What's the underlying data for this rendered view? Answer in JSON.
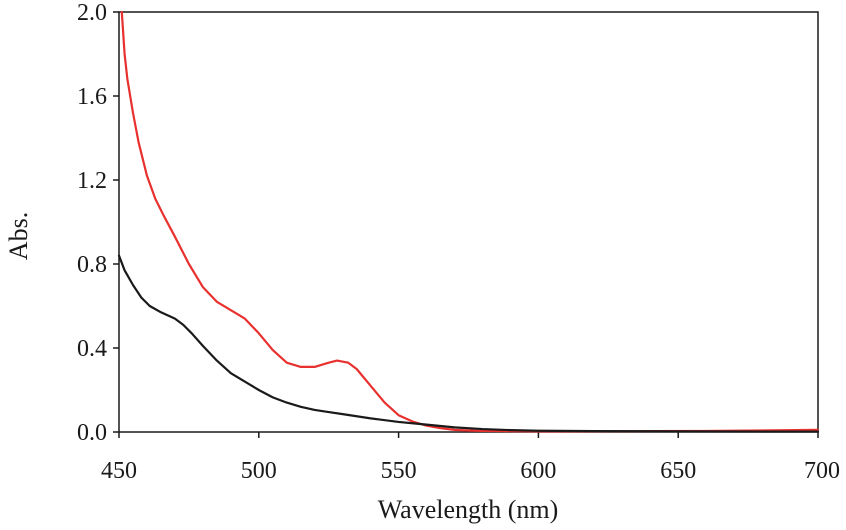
{
  "chart_data": {
    "type": "line",
    "title": "",
    "xlabel": "Wavelength (nm)",
    "ylabel": "Abs.",
    "xlim": [
      450,
      700
    ],
    "ylim": [
      0.0,
      2.0
    ],
    "xticks": [
      450,
      500,
      550,
      600,
      650,
      700
    ],
    "xtick_labels": [
      "450",
      "500",
      "550",
      "600",
      "650",
      "700"
    ],
    "yticks": [
      0.0,
      0.4,
      0.8,
      1.2,
      1.6,
      2.0
    ],
    "ytick_labels": [
      "0.0",
      "0.4",
      "0.8",
      "1.2",
      "1.6",
      "2.0"
    ],
    "grid": false,
    "legend": "none",
    "series": [
      {
        "color": "#e8312f",
        "x": [
          451,
          452,
          453,
          455,
          457,
          460,
          463,
          466,
          470,
          475,
          480,
          485,
          490,
          495,
          500,
          505,
          510,
          515,
          520,
          525,
          528,
          532,
          535,
          540,
          545,
          550,
          555,
          560,
          565,
          570,
          575,
          580,
          590,
          600,
          620,
          640,
          660,
          680,
          700
        ],
        "y": [
          2.0,
          1.8,
          1.68,
          1.52,
          1.38,
          1.22,
          1.11,
          1.03,
          0.93,
          0.8,
          0.69,
          0.62,
          0.58,
          0.54,
          0.47,
          0.39,
          0.33,
          0.31,
          0.31,
          0.33,
          0.34,
          0.33,
          0.3,
          0.22,
          0.14,
          0.08,
          0.05,
          0.03,
          0.018,
          0.01,
          0.007,
          0.005,
          0.004,
          0.003,
          0.003,
          0.004,
          0.005,
          0.007,
          0.01
        ]
      },
      {
        "color": "#1a1a1a",
        "x": [
          450,
          452,
          455,
          458,
          461,
          465,
          470,
          473,
          476,
          480,
          485,
          490,
          495,
          500,
          505,
          510,
          515,
          520,
          525,
          530,
          540,
          550,
          560,
          570,
          580,
          590,
          600,
          620,
          650,
          680,
          700
        ],
        "y": [
          0.84,
          0.77,
          0.7,
          0.64,
          0.6,
          0.57,
          0.54,
          0.51,
          0.47,
          0.41,
          0.34,
          0.28,
          0.24,
          0.2,
          0.165,
          0.14,
          0.12,
          0.105,
          0.095,
          0.085,
          0.065,
          0.048,
          0.035,
          0.022,
          0.014,
          0.009,
          0.006,
          0.004,
          0.003,
          0.002,
          0.002
        ]
      }
    ]
  }
}
